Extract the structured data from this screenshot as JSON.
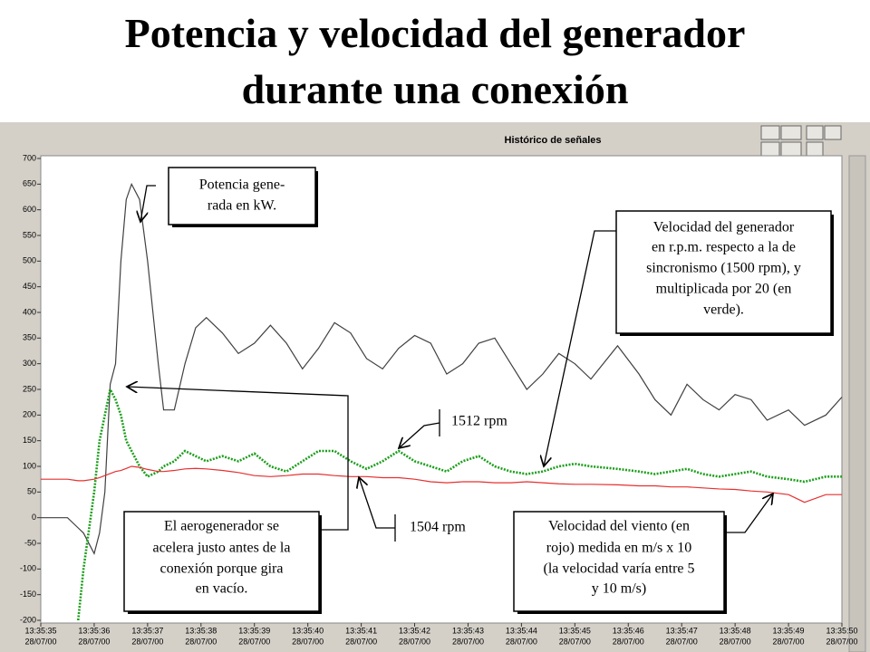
{
  "title_lines": [
    "Potencia y velocidad del generador",
    "durante una conexión"
  ],
  "chart_data": {
    "type": "line",
    "title": "Histórico de señales",
    "x": [
      35,
      35.5,
      35.7,
      35.8,
      36,
      36.1,
      36.2,
      36.3,
      36.4,
      36.5,
      36.6,
      36.7,
      36.85,
      37,
      37.2,
      37.3,
      37.5,
      37.7,
      37.9,
      38.1,
      38.4,
      38.7,
      39,
      39.3,
      39.6,
      39.9,
      40.2,
      40.5,
      40.8,
      41.1,
      41.4,
      41.7,
      42,
      42.3,
      42.6,
      42.9,
      43.2,
      43.5,
      43.8,
      44.1,
      44.4,
      44.7,
      45,
      45.3,
      45.8,
      46.2,
      46.5,
      46.8,
      47.1,
      47.4,
      47.7,
      48,
      48.3,
      48.6,
      49,
      49.3,
      49.7,
      50
    ],
    "series": [
      {
        "color": "#404040",
        "style": "solid",
        "values": [
          0,
          0,
          -20,
          -30,
          -70,
          -30,
          50,
          260,
          300,
          500,
          620,
          650,
          620,
          500,
          300,
          210,
          210,
          300,
          370,
          390,
          360,
          320,
          340,
          375,
          340,
          290,
          330,
          380,
          360,
          310,
          290,
          330,
          355,
          340,
          280,
          300,
          340,
          350,
          300,
          250,
          280,
          320,
          300,
          270,
          335,
          280,
          230,
          200,
          260,
          230,
          210,
          240,
          230,
          190,
          210,
          180,
          200,
          235
        ]
      },
      {
        "color": "#1c9e1c",
        "style": "dotted",
        "values": [
          null,
          null,
          -200,
          -100,
          50,
          150,
          200,
          250,
          230,
          200,
          150,
          130,
          100,
          80,
          90,
          100,
          110,
          130,
          120,
          110,
          120,
          110,
          125,
          100,
          90,
          110,
          130,
          130,
          110,
          95,
          110,
          130,
          110,
          100,
          90,
          110,
          120,
          100,
          90,
          85,
          90,
          100,
          105,
          100,
          95,
          90,
          85,
          90,
          95,
          85,
          80,
          85,
          90,
          80,
          75,
          70,
          80,
          80
        ]
      },
      {
        "color": "#e53030",
        "style": "solid",
        "values": [
          75,
          75,
          72,
          72,
          75,
          78,
          82,
          86,
          90,
          92,
          96,
          100,
          98,
          94,
          90,
          90,
          92,
          95,
          96,
          95,
          92,
          88,
          82,
          80,
          82,
          85,
          85,
          82,
          80,
          80,
          78,
          78,
          75,
          70,
          68,
          70,
          70,
          68,
          68,
          70,
          68,
          66,
          65,
          65,
          64,
          62,
          62,
          60,
          60,
          58,
          56,
          55,
          52,
          50,
          45,
          30,
          45,
          45
        ]
      }
    ],
    "xlim": [
      35,
      50
    ],
    "xticks": [
      {
        "value": 35,
        "label": "13:35:35"
      },
      {
        "value": 36,
        "label": "13:35:36"
      },
      {
        "value": 37,
        "label": "13:35:37"
      },
      {
        "value": 38,
        "label": "13:35:38"
      },
      {
        "value": 39,
        "label": "13:35:39"
      },
      {
        "value": 40,
        "label": "13:35:40"
      },
      {
        "value": 41,
        "label": "13:35:41"
      },
      {
        "value": 42,
        "label": "13:35:42"
      },
      {
        "value": 43,
        "label": "13:35:43"
      },
      {
        "value": 44,
        "label": "13:35:44"
      },
      {
        "value": 45,
        "label": "13:35:45"
      },
      {
        "value": 46,
        "label": "13:35:46"
      },
      {
        "value": 47,
        "label": "13:35:47"
      },
      {
        "value": 48,
        "label": "13:35:48"
      },
      {
        "value": 49,
        "label": "13:35:49"
      },
      {
        "value": 50,
        "label": "13:35:50"
      }
    ],
    "xtick_dates": [
      "28/07/00",
      "28/07/00",
      "28/07/00",
      "28/07/00",
      "28/07/00",
      "28/07/00",
      "28/07/00",
      "28/07/00",
      "28/07/00",
      "28/07/00",
      "28/07/00",
      "28/07/00",
      "28/07/00",
      "28/07/00",
      "28/07/00",
      "28/07/00"
    ],
    "ylim": [
      -200,
      700
    ],
    "yticks": [
      -200,
      -150,
      -100,
      -50,
      0,
      50,
      100,
      150,
      200,
      250,
      300,
      350,
      400,
      450,
      500,
      550,
      600,
      650,
      700
    ],
    "grid": false,
    "annotations": [
      {
        "lines": [
          "Potencia gene-",
          "rada en kW."
        ]
      },
      {
        "lines": [
          "Velocidad del generador",
          "en r.p.m. respecto a la de",
          "sincronismo (1500 rpm), y",
          "multiplicada por 20 (en",
          "verde)."
        ]
      },
      {
        "lines": [
          "El aerogenerador se",
          "acelera justo antes de la",
          "conexión porque gira",
          "en vacío."
        ]
      },
      {
        "lines": [
          "Velocidad del viento (en",
          "rojo) medida en m/s x 10",
          "(la velocidad varía entre 5",
          "y 10 m/s)"
        ]
      },
      {
        "lines": [
          "1512 rpm"
        ]
      },
      {
        "lines": [
          "1504 rpm"
        ]
      }
    ]
  }
}
